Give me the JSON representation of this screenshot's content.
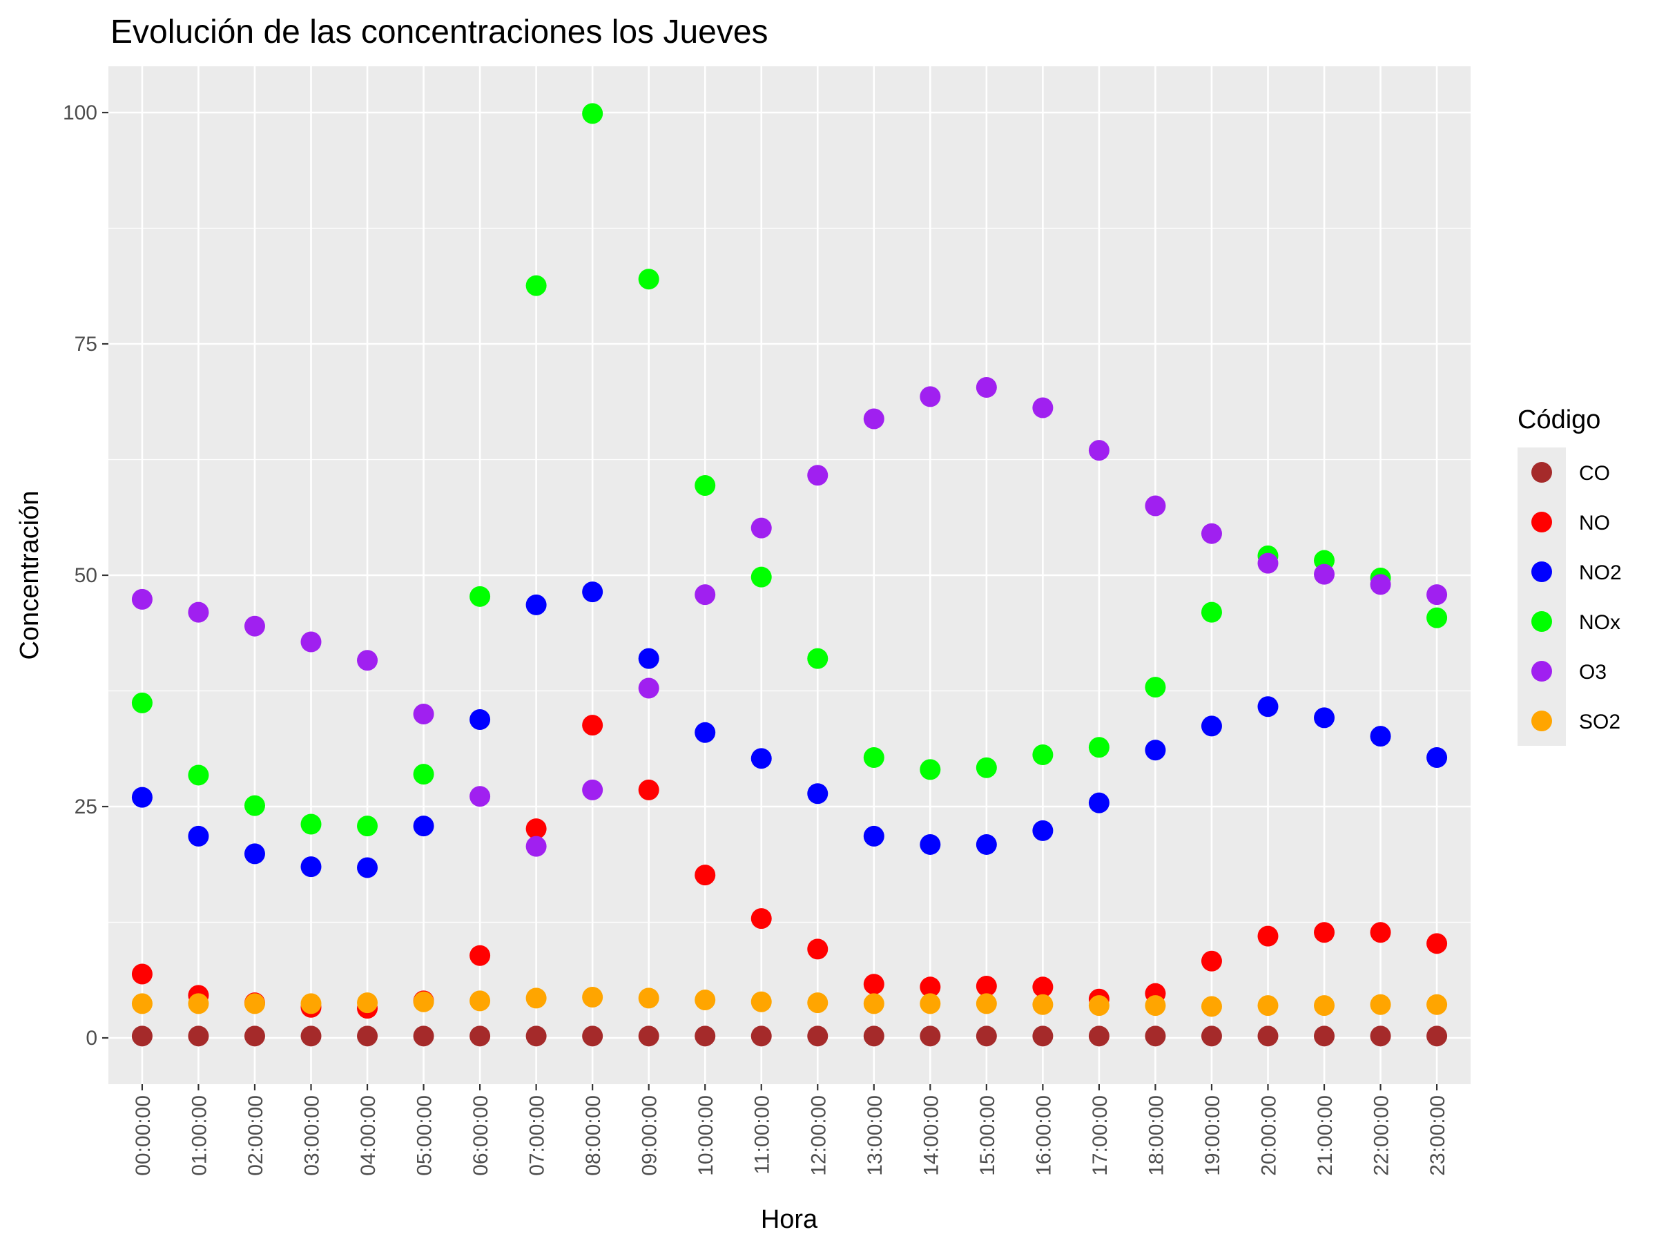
{
  "chart_data": {
    "type": "scatter",
    "title": "Evolución de las concentraciones los Jueves",
    "xlabel": "Hora",
    "ylabel": "Concentración",
    "ylim": [
      -5,
      105
    ],
    "yticks": [
      0,
      25,
      50,
      75,
      100
    ],
    "grid": true,
    "legend_position": "right",
    "legend_title": "Código",
    "categories": [
      "00:00:00",
      "01:00:00",
      "02:00:00",
      "03:00:00",
      "04:00:00",
      "05:00:00",
      "06:00:00",
      "07:00:00",
      "08:00:00",
      "09:00:00",
      "10:00:00",
      "11:00:00",
      "12:00:00",
      "13:00:00",
      "14:00:00",
      "15:00:00",
      "16:00:00",
      "17:00:00",
      "18:00:00",
      "19:00:00",
      "20:00:00",
      "21:00:00",
      "22:00:00",
      "23:00:00"
    ],
    "series": [
      {
        "name": "CO",
        "color": "#a52a2a",
        "values": [
          0.2,
          0.2,
          0.2,
          0.2,
          0.2,
          0.2,
          0.2,
          0.2,
          0.2,
          0.2,
          0.2,
          0.2,
          0.2,
          0.2,
          0.2,
          0.2,
          0.2,
          0.2,
          0.2,
          0.2,
          0.2,
          0.2,
          0.2,
          0.2
        ]
      },
      {
        "name": "NO",
        "color": "#ff0000",
        "values": [
          6.9,
          4.6,
          3.8,
          3.3,
          3.2,
          4.0,
          8.9,
          22.6,
          33.8,
          26.8,
          17.6,
          12.9,
          9.6,
          5.8,
          5.5,
          5.6,
          5.5,
          4.2,
          4.8,
          8.3,
          11.0,
          11.4,
          11.4,
          10.2
        ]
      },
      {
        "name": "NO2",
        "color": "#0000ff",
        "values": [
          26.0,
          21.8,
          19.9,
          18.5,
          18.4,
          22.9,
          34.4,
          46.8,
          48.2,
          41.0,
          33.0,
          30.2,
          26.4,
          21.8,
          20.9,
          20.9,
          22.4,
          25.4,
          31.1,
          33.7,
          35.8,
          34.6,
          32.6,
          30.3
        ]
      },
      {
        "name": "NOx",
        "color": "#00ff00",
        "values": [
          36.2,
          28.4,
          25.1,
          23.1,
          22.9,
          28.5,
          47.7,
          81.3,
          99.9,
          82.0,
          59.7,
          49.8,
          41.0,
          30.3,
          29.0,
          29.2,
          30.6,
          31.4,
          37.9,
          46.0,
          52.1,
          51.6,
          49.7,
          45.4
        ]
      },
      {
        "name": "O3",
        "color": "#a020f0",
        "values": [
          47.4,
          46.0,
          44.5,
          42.8,
          40.8,
          35.0,
          26.1,
          20.7,
          26.8,
          37.8,
          47.9,
          55.1,
          60.8,
          66.9,
          69.3,
          70.3,
          68.1,
          63.5,
          57.5,
          54.5,
          51.3,
          50.1,
          49.0,
          47.9
        ]
      },
      {
        "name": "SO2",
        "color": "#ffa500",
        "values": [
          3.7,
          3.7,
          3.7,
          3.7,
          3.8,
          3.9,
          4.0,
          4.3,
          4.4,
          4.3,
          4.1,
          3.9,
          3.8,
          3.7,
          3.7,
          3.7,
          3.6,
          3.5,
          3.5,
          3.4,
          3.5,
          3.5,
          3.6,
          3.6
        ]
      }
    ]
  }
}
